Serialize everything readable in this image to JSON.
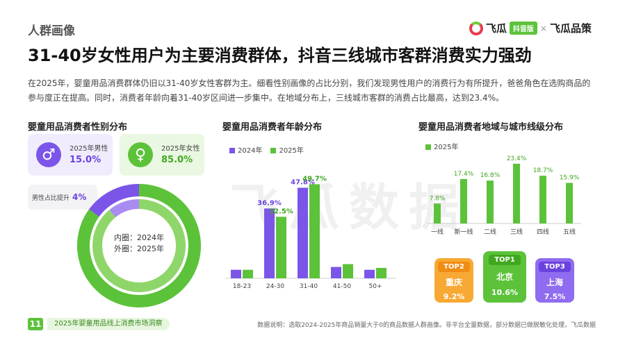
{
  "section_tag": "人群画像",
  "logo": {
    "brand": "飞瓜",
    "badge": "抖音版",
    "separator": "×",
    "partner": "飞瓜品策"
  },
  "headline": "31-40岁女性用户为主要消费群体，抖音三线城市客群消费实力强劲",
  "intro": "在2025年，婴童用品消费群体仍旧以31-40岁女性客群为主。细看性别画像的占比分别，我们发现男性用户的消费行为有所提升，爸爸角色在选购商品的参与度正在提高。同时，消费者年龄向着31-40岁区间进一步集中。在地域分布上，三线城市客群的消费占比最高，达到23.4%。",
  "watermark": "飞瓜数据",
  "colors": {
    "purple": "#7b55e8",
    "green": "#5cc23a",
    "orange": "#f5a623",
    "light_purple": "#a98cf2"
  },
  "gender_panel": {
    "title": "婴童用品消费者性别分布",
    "male": {
      "label": "2025年男性",
      "value": "15.0%",
      "icon": "male-symbol-icon",
      "glyph": "♂"
    },
    "female": {
      "label": "2025年女性",
      "value": "85.0%",
      "icon": "female-symbol-icon",
      "glyph": "♀"
    },
    "rise_label": "男性占比提升",
    "rise_value": "4%",
    "donut_center_line1": "内圈：2024年",
    "donut_center_line2": "外圈：2025年"
  },
  "age_panel": {
    "title": "婴童用品消费者年龄分布"
  },
  "region_panel": {
    "title": "婴童用品消费者地域与城市线级分布",
    "top_cities": [
      {
        "rank": "TOP2",
        "city": "重庆",
        "value": "9.2%"
      },
      {
        "rank": "TOP1",
        "city": "北京",
        "value": "10.6%"
      },
      {
        "rank": "TOP3",
        "city": "上海",
        "value": "7.5%"
      }
    ]
  },
  "footer": {
    "page_number": "11",
    "report_title": "2025年婴童用品线上消费市场洞察",
    "note": "数据说明：选取2024-2025年商品销量大于0的商品数据人群画像。非平台全量数据，部分数据已做脱敏化处理，飞瓜数据"
  },
  "chart_data": [
    {
      "type": "pie",
      "title": "婴童用品消费者性别分布",
      "series": [
        {
          "name": "内圈：2024年",
          "labels": [
            "男性",
            "女性"
          ],
          "values": [
            11.0,
            89.0
          ]
        },
        {
          "name": "外圈：2025年",
          "labels": [
            "男性",
            "女性"
          ],
          "values": [
            15.0,
            85.0
          ]
        }
      ]
    },
    {
      "type": "bar",
      "title": "婴童用品消费者年龄分布",
      "categories": [
        "18-23",
        "24-30",
        "31-40",
        "41-50",
        "50+"
      ],
      "series": [
        {
          "name": "2024年",
          "values": [
            4.5,
            36.9,
            47.8,
            6.0,
            4.5
          ],
          "labels": [
            "",
            "36.9%",
            "47.8%",
            "",
            ""
          ]
        },
        {
          "name": "2025年",
          "values": [
            4.5,
            32.5,
            49.7,
            7.5,
            5.5
          ],
          "labels": [
            "",
            "32.5%",
            "49.7%",
            "",
            ""
          ]
        }
      ],
      "ylim": [
        0,
        55
      ],
      "legend": "top-left"
    },
    {
      "type": "bar",
      "title": "婴童用品消费者地域与城市线级分布",
      "categories": [
        "一线",
        "新一线",
        "二线",
        "三线",
        "四线",
        "五线"
      ],
      "series": [
        {
          "name": "2025年",
          "values": [
            7.8,
            17.4,
            16.8,
            23.4,
            18.7,
            15.9
          ],
          "labels": [
            "7.8%",
            "17.4%",
            "16.8%",
            "23.4%",
            "18.7%",
            "15.9%"
          ]
        }
      ],
      "ylim": [
        0,
        25
      ],
      "legend": "top-left"
    }
  ]
}
